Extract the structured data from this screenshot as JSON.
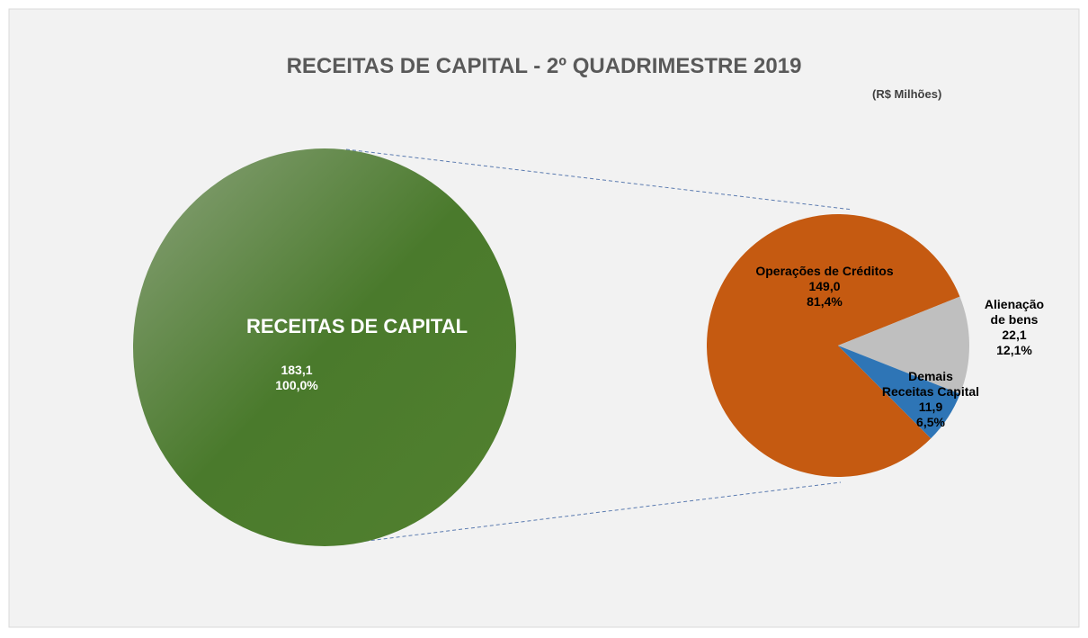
{
  "chart_data": {
    "type": "pie_of_pie",
    "title": "RECEITAS DE CAPITAL - 2º QUADRIMESTRE 2019",
    "subtitle": "(R$ Milhões)",
    "total": {
      "label": "RECEITAS DE CAPITAL",
      "value": 183.1,
      "value_label": "183,1",
      "percent": 100.0,
      "percent_label": "100,0%",
      "color": "#4a7a2c"
    },
    "categories": [
      "Operações de Créditos",
      "Alienação de bens",
      "Demais\nReceitas Capital"
    ],
    "values": [
      149.0,
      22.1,
      11.9
    ],
    "value_labels": [
      "149,0",
      "22,1",
      "11,9"
    ],
    "percents": [
      81.4,
      12.1,
      6.5
    ],
    "percent_labels": [
      "81,4%",
      "12,1%",
      "6,5%"
    ],
    "colors": [
      "#c55a11",
      "#bfbfbf",
      "#2e75b6"
    ]
  }
}
